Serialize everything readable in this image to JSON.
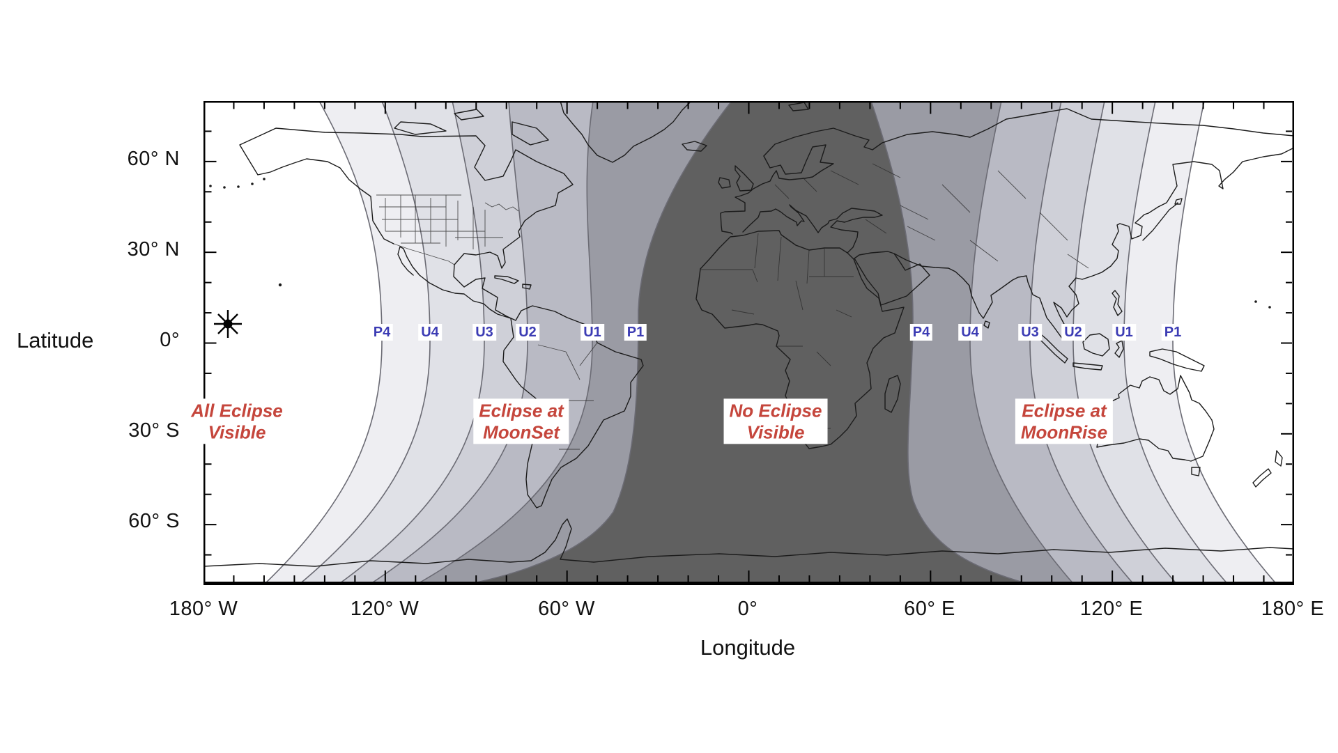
{
  "figure": {
    "kind": "lunar eclipse visibility world map",
    "axes": {
      "y": {
        "title": "Latitude",
        "ticks": [
          "60° N",
          "30° N",
          "0°",
          "30° S",
          "60° S"
        ]
      },
      "x": {
        "title": "Longitude",
        "ticks": [
          "180° W",
          "120° W",
          "60° W",
          "0°",
          "60° E",
          "120° E",
          "180° E"
        ]
      }
    },
    "contours": {
      "left_labels": [
        "P4",
        "U4",
        "U3",
        "U2",
        "U1",
        "P1"
      ],
      "right_labels": [
        "P4",
        "U4",
        "U3",
        "U2",
        "U1",
        "P1"
      ],
      "label_color": "#3c3cb4"
    },
    "regions": [
      {
        "name": "all-eclipse-visible",
        "line1": "All Eclipse",
        "line2": "Visible"
      },
      {
        "name": "eclipse-at-moonset",
        "line1": "Eclipse at",
        "line2": "MoonSet"
      },
      {
        "name": "no-eclipse-visible",
        "line1": "No Eclipse",
        "line2": "Visible"
      },
      {
        "name": "eclipse-at-moonrise",
        "line1": "Eclipse at",
        "line2": "MoonRise"
      }
    ],
    "region_label_color": "#c5463c",
    "shading": {
      "band_grays": [
        "#eeeef2",
        "#e0e1e7",
        "#cfd0d8",
        "#b9bac4",
        "#9a9ba4"
      ],
      "no_eclipse_fill": "#606060",
      "background": "#ffffff"
    },
    "marker": {
      "name": "star-marker",
      "color": "#000000"
    }
  }
}
